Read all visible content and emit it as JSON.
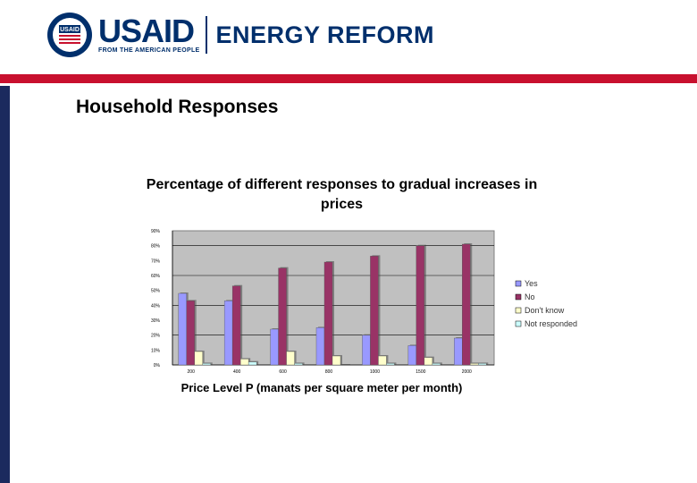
{
  "header": {
    "brand": "USAID",
    "tagline": "FROM THE AMERICAN PEOPLE",
    "program": "ENERGY REFORM",
    "seal_text": "USAID"
  },
  "slide": {
    "title": "Household Responses"
  },
  "colors": {
    "brand_blue": "#002f6c",
    "brand_red": "#c8102e",
    "plot_bg": "#c0c0c0",
    "yes": "#9999ff",
    "no": "#993366",
    "dont_know": "#ffffcc",
    "not_responded": "#ccffff"
  },
  "chart_data": {
    "type": "bar",
    "title": "Percentage of different responses to gradual increases in prices",
    "xlabel": "Price Level P (manats per square meter per month)",
    "ylabel": "",
    "categories": [
      "200",
      "400",
      "600",
      "800",
      "1000",
      "1500",
      "2000"
    ],
    "ylim": [
      0,
      90
    ],
    "yticks": [
      "0%",
      "10%",
      "20%",
      "30%",
      "40%",
      "50%",
      "60%",
      "70%",
      "80%",
      "90%"
    ],
    "grid": true,
    "legend_position": "right",
    "series": [
      {
        "name": "Yes",
        "values": [
          48,
          43,
          24,
          25,
          20,
          13,
          18
        ]
      },
      {
        "name": "No",
        "values": [
          43,
          53,
          65,
          69,
          73,
          80,
          81
        ]
      },
      {
        "name": "Don't know",
        "values": [
          9,
          4,
          9,
          6,
          6,
          5,
          1
        ]
      },
      {
        "name": "Not responded",
        "values": [
          1,
          2,
          1,
          0,
          1,
          1,
          1
        ]
      }
    ]
  }
}
